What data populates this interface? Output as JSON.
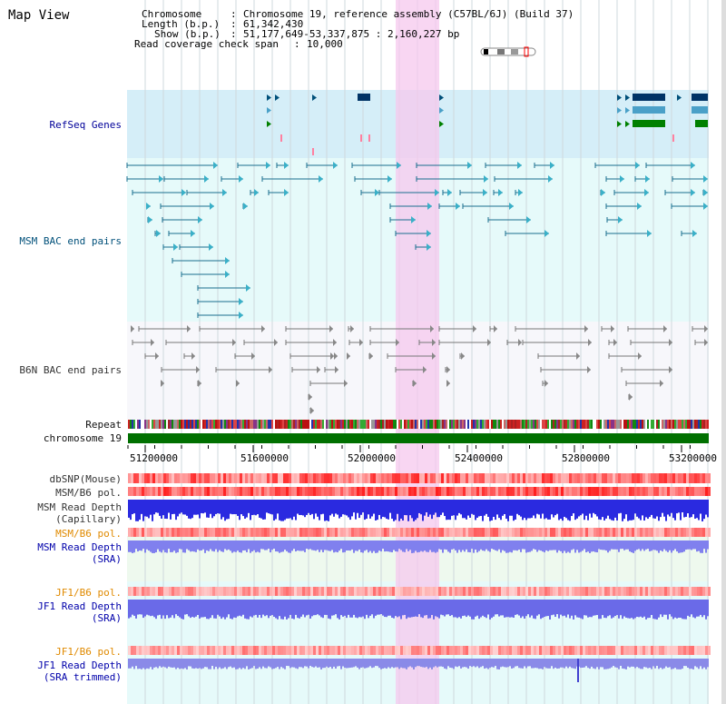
{
  "page": {
    "title": "Map View"
  },
  "info": {
    "chromosome_key": "Chromosome",
    "chromosome_val": "Chromosome 19, reference assembly (C57BL/6J) (Build 37)",
    "length_key": "Length (b.p.)",
    "length_val": "61,342,430",
    "show_key": "Show (b.p.)",
    "show_val": "51,177,649-53,337,875 : 2,160,227 bp",
    "coverage_key": "Read coverage check span",
    "coverage_val": "10,000"
  },
  "tracks": {
    "refseq": "RefSeq Genes",
    "msm_bac": "MSM BAC end pairs",
    "b6n_bac": "B6N BAC end pairs",
    "repeat": "Repeat",
    "chromosome": "chromosome 19",
    "dbsnp": "dbSNP(Mouse)",
    "msm_b6_pol": "MSM/B6 pol.",
    "msm_depth_cap_1": "MSM Read Depth",
    "msm_depth_cap_2": "(Capillary)",
    "msm_b6_pol2": "MSM/B6 pol.",
    "msm_depth_sra_1": "MSM Read Depth",
    "msm_depth_sra_2": "(SRA)",
    "jf1_pol": "JF1/B6 pol.",
    "jf1_depth_1": "JF1 Read Depth",
    "jf1_depth_2": "(SRA)",
    "jf1_pol2": "JF1/B6 pol.",
    "jf1_trim_1": "JF1 Read Depth",
    "jf1_trim_2": "(SRA trimmed)"
  },
  "axis": {
    "ticks": [
      "51200000",
      "51600000",
      "52000000",
      "52400000",
      "52800000",
      "53200000"
    ]
  },
  "colors": {
    "refseq_bg": "#d5eef8",
    "bac_bg": "#e6fafa",
    "highlight": "#f6d6f0",
    "chrom_green": "#007000",
    "gene_dark": "#003366"
  }
}
